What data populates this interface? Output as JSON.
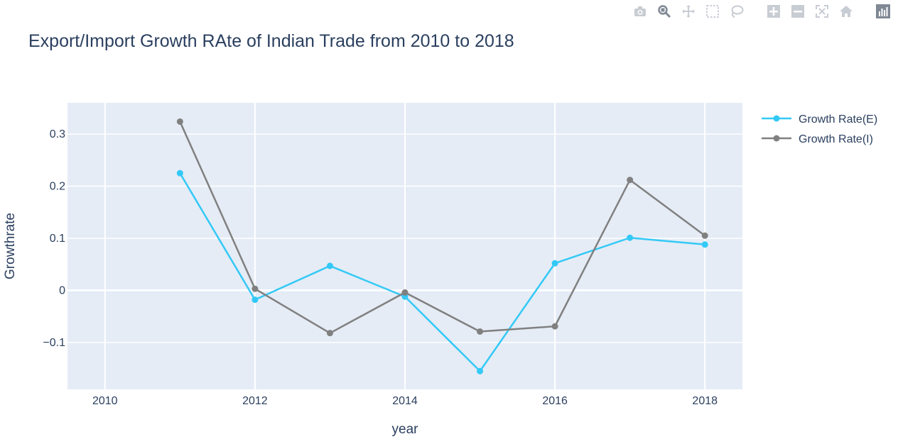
{
  "toolbar": {
    "buttons": [
      {
        "name": "camera-icon",
        "label": "Download plot as a png"
      },
      {
        "name": "zoom-icon",
        "label": "Zoom"
      },
      {
        "name": "pan-icon",
        "label": "Pan"
      },
      {
        "name": "box-select-icon",
        "label": "Box Select"
      },
      {
        "name": "lasso-select-icon",
        "label": "Lasso Select"
      },
      {
        "name": "zoom-in-icon",
        "label": "Zoom in"
      },
      {
        "name": "zoom-out-icon",
        "label": "Zoom out"
      },
      {
        "name": "autoscale-icon",
        "label": "Autoscale"
      },
      {
        "name": "reset-axes-icon",
        "label": "Reset axes"
      },
      {
        "name": "plotly-logo-icon",
        "label": "Produced with Plotly"
      }
    ]
  },
  "chart_data": {
    "type": "line",
    "title": "Export/Import Growth RAte of Indian Trade from 2010 to 2018",
    "xlabel": "year",
    "ylabel": "Growthrate",
    "xlim": [
      2009.5,
      2018.5
    ],
    "ylim": [
      -0.19,
      0.36
    ],
    "x_ticks": [
      2010,
      2012,
      2014,
      2016,
      2018
    ],
    "y_ticks": [
      -0.1,
      0,
      0.1,
      0.2,
      0.3
    ],
    "y_tick_labels": [
      "−0.1",
      "0",
      "0.1",
      "0.2",
      "0.3"
    ],
    "grid": true,
    "legend_position": "top-right outside",
    "background": "#e5ecf6",
    "series": [
      {
        "name": "Growth Rate(E)",
        "color": "#33c9f6",
        "x": [
          2011,
          2012,
          2013,
          2014,
          2015,
          2016,
          2017,
          2018
        ],
        "values": [
          0.225,
          -0.018,
          0.047,
          -0.012,
          -0.155,
          0.052,
          0.101,
          0.088
        ]
      },
      {
        "name": "Growth Rate(I)",
        "color": "#808080",
        "x": [
          2011,
          2012,
          2013,
          2014,
          2015,
          2016,
          2017,
          2018
        ],
        "values": [
          0.324,
          0.003,
          -0.082,
          -0.004,
          -0.079,
          -0.069,
          0.212,
          0.105
        ]
      }
    ]
  }
}
